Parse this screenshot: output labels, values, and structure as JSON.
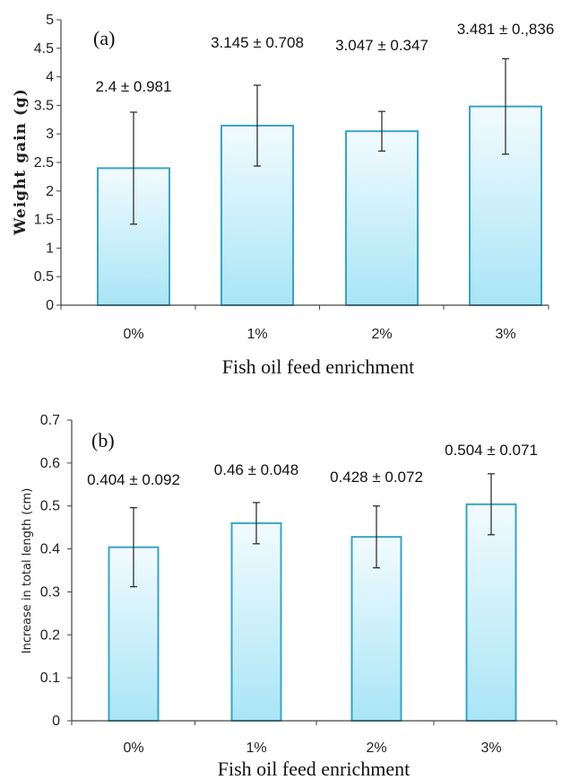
{
  "chart_data": [
    {
      "type": "bar",
      "panel_label": "(a)",
      "categories": [
        "0%",
        "1%",
        "2%",
        "3%"
      ],
      "values": [
        2.4,
        3.145,
        3.047,
        3.481
      ],
      "errors": [
        0.981,
        0.708,
        0.347,
        0.836
      ],
      "data_labels": [
        "2.4 ± 0.981",
        "3.145 ± 0.708",
        "3.047 ± 0.347",
        "3.481 ± 0.,836"
      ],
      "xlabel": "Fish oil feed enrichment",
      "ylabel": "Weight gain (g)",
      "ylim": [
        0,
        5
      ],
      "yticks": [
        "0",
        "0.5",
        "1",
        "1.5",
        "2",
        "2.5",
        "3",
        "3.5",
        "4",
        "4.5",
        "5"
      ],
      "grid": false
    },
    {
      "type": "bar",
      "panel_label": "(b)",
      "categories": [
        "0%",
        "1%",
        "2%",
        "3%"
      ],
      "values": [
        0.404,
        0.46,
        0.428,
        0.504
      ],
      "errors": [
        0.092,
        0.048,
        0.072,
        0.071
      ],
      "data_labels": [
        "0.404 ± 0.092",
        "0.46 ± 0.048",
        "0.428 ± 0.072",
        "0.504 ± 0.071"
      ],
      "xlabel": "Fish oil feed enrichment",
      "ylabel": "Increase in total length (cm)",
      "ylim": [
        0,
        0.7
      ],
      "yticks": [
        "0",
        "0.1",
        "0.2",
        "0.3",
        "0.4",
        "0.5",
        "0.6",
        "0.7"
      ],
      "grid": false
    }
  ],
  "colors": {
    "bar_fill_top": "#f2fbfe",
    "bar_fill_bottom": "#a9e5f6",
    "bar_stroke": "#35a6c4",
    "axis": "#444444",
    "error_bar": "#222222"
  }
}
